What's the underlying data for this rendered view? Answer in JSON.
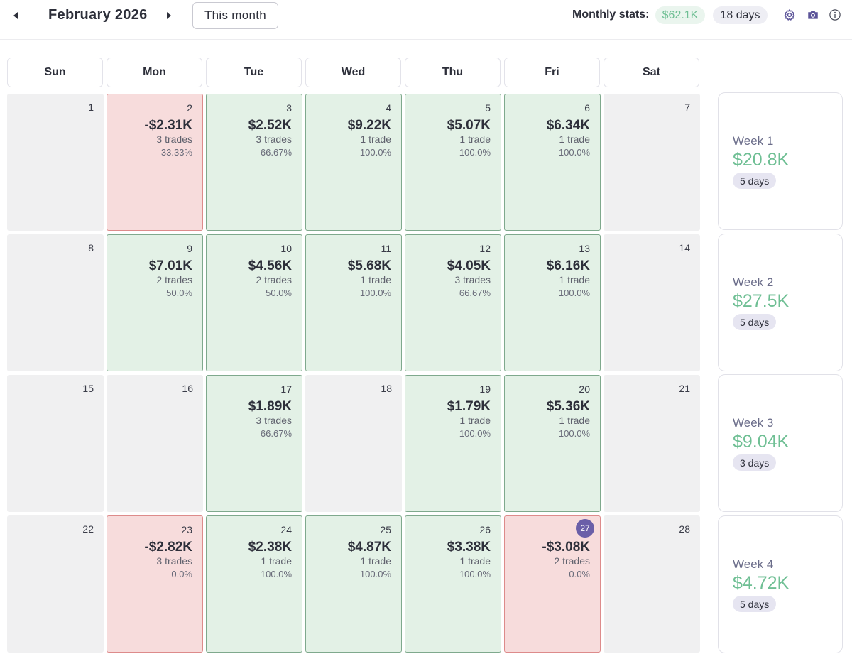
{
  "header": {
    "month_title": "February 2026",
    "this_month_label": "This month",
    "stats_label": "Monthly stats:",
    "total_pnl": "$62.1K",
    "total_days": "18 days",
    "icons": [
      "caret-left-icon",
      "caret-right-icon",
      "gear-icon",
      "camera-icon",
      "info-icon"
    ]
  },
  "weekdays": [
    "Sun",
    "Mon",
    "Tue",
    "Wed",
    "Thu",
    "Fri",
    "Sat"
  ],
  "colors": {
    "win_bg": "#e3f1e6",
    "loss_bg": "#f7dcdc",
    "empty_bg": "#f0f0f1",
    "positive_text": "#6fbf94",
    "today_badge": "#6a5fa8",
    "accent": "#5c5499"
  },
  "weeks": [
    {
      "label": "Week 1",
      "value": "$20.8K",
      "days": "5 days",
      "cells": [
        {
          "day": "1",
          "status": "empty"
        },
        {
          "day": "2",
          "status": "loss",
          "pnl": "-$2.31K",
          "trades": "3 trades",
          "pct": "33.33%"
        },
        {
          "day": "3",
          "status": "win",
          "pnl": "$2.52K",
          "trades": "3 trades",
          "pct": "66.67%"
        },
        {
          "day": "4",
          "status": "win",
          "pnl": "$9.22K",
          "trades": "1 trade",
          "pct": "100.0%"
        },
        {
          "day": "5",
          "status": "win",
          "pnl": "$5.07K",
          "trades": "1 trade",
          "pct": "100.0%"
        },
        {
          "day": "6",
          "status": "win",
          "pnl": "$6.34K",
          "trades": "1 trade",
          "pct": "100.0%"
        },
        {
          "day": "7",
          "status": "empty"
        }
      ]
    },
    {
      "label": "Week 2",
      "value": "$27.5K",
      "days": "5 days",
      "cells": [
        {
          "day": "8",
          "status": "empty"
        },
        {
          "day": "9",
          "status": "win",
          "pnl": "$7.01K",
          "trades": "2 trades",
          "pct": "50.0%"
        },
        {
          "day": "10",
          "status": "win",
          "pnl": "$4.56K",
          "trades": "2 trades",
          "pct": "50.0%"
        },
        {
          "day": "11",
          "status": "win",
          "pnl": "$5.68K",
          "trades": "1 trade",
          "pct": "100.0%"
        },
        {
          "day": "12",
          "status": "win",
          "pnl": "$4.05K",
          "trades": "3 trades",
          "pct": "66.67%"
        },
        {
          "day": "13",
          "status": "win",
          "pnl": "$6.16K",
          "trades": "1 trade",
          "pct": "100.0%"
        },
        {
          "day": "14",
          "status": "empty"
        }
      ]
    },
    {
      "label": "Week 3",
      "value": "$9.04K",
      "days": "3 days",
      "cells": [
        {
          "day": "15",
          "status": "empty"
        },
        {
          "day": "16",
          "status": "empty"
        },
        {
          "day": "17",
          "status": "win",
          "pnl": "$1.89K",
          "trades": "3 trades",
          "pct": "66.67%"
        },
        {
          "day": "18",
          "status": "empty"
        },
        {
          "day": "19",
          "status": "win",
          "pnl": "$1.79K",
          "trades": "1 trade",
          "pct": "100.0%"
        },
        {
          "day": "20",
          "status": "win",
          "pnl": "$5.36K",
          "trades": "1 trade",
          "pct": "100.0%"
        },
        {
          "day": "21",
          "status": "empty"
        }
      ]
    },
    {
      "label": "Week 4",
      "value": "$4.72K",
      "days": "5 days",
      "cells": [
        {
          "day": "22",
          "status": "empty"
        },
        {
          "day": "23",
          "status": "loss",
          "pnl": "-$2.82K",
          "trades": "3 trades",
          "pct": "0.0%"
        },
        {
          "day": "24",
          "status": "win",
          "pnl": "$2.38K",
          "trades": "1 trade",
          "pct": "100.0%"
        },
        {
          "day": "25",
          "status": "win",
          "pnl": "$4.87K",
          "trades": "1 trade",
          "pct": "100.0%"
        },
        {
          "day": "26",
          "status": "win",
          "pnl": "$3.38K",
          "trades": "1 trade",
          "pct": "100.0%"
        },
        {
          "day": "27",
          "status": "loss",
          "pnl": "-$3.08K",
          "trades": "2 trades",
          "pct": "0.0%",
          "today": true
        },
        {
          "day": "28",
          "status": "empty"
        }
      ]
    }
  ]
}
